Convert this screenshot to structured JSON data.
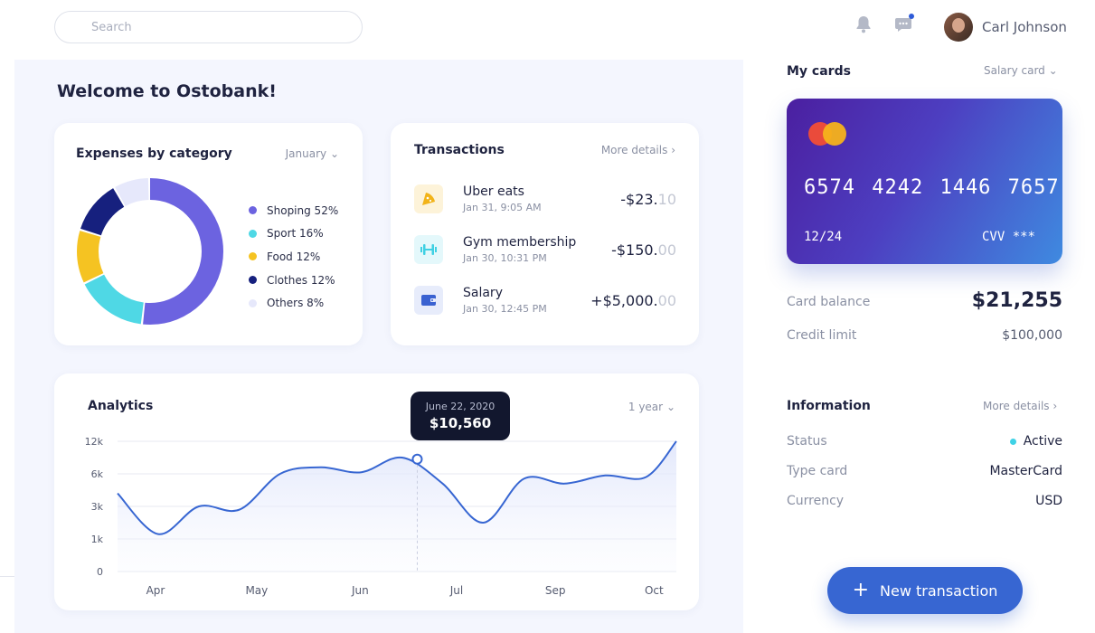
{
  "search": {
    "placeholder": "Search"
  },
  "header": {
    "user_name": "Carl Johnson",
    "icons": [
      "bell-icon",
      "chat-icon"
    ]
  },
  "welcome": "Welcome to Ostobank!",
  "expenses": {
    "title": "Expenses by category",
    "month": "January",
    "items": [
      {
        "label": "Shoping 52%",
        "percent": 52,
        "color": "#6c63e0"
      },
      {
        "label": "Sport 16%",
        "percent": 16,
        "color": "#4fd8e5"
      },
      {
        "label": "Food 12%",
        "percent": 12,
        "color": "#f5c322"
      },
      {
        "label": "Clothes 12%",
        "percent": 12,
        "color": "#16207e"
      },
      {
        "label": "Others 8%",
        "percent": 8,
        "color": "#e6e8fb"
      }
    ]
  },
  "transactions": {
    "title": "Transactions",
    "more": "More details",
    "items": [
      {
        "name": "Uber eats",
        "date": "Jan 31, 9:05 AM",
        "amount_main": "-$23.",
        "amount_cents": "10",
        "icon": "pizza-icon",
        "icon_bg": "#fdf3d9",
        "icon_color": "#f2b318"
      },
      {
        "name": "Gym membership",
        "date": "Jan 30, 10:31 PM",
        "amount_main": "-$150.",
        "amount_cents": "00",
        "icon": "dumbbell-icon",
        "icon_bg": "#e4f8fb",
        "icon_color": "#3fd0e3"
      },
      {
        "name": "Salary",
        "date": "Jan 30, 12:45 PM",
        "amount_main": "+$5,000.",
        "amount_cents": "00",
        "icon": "wallet-icon",
        "icon_bg": "#e7ecfb",
        "icon_color": "#3a62d1"
      }
    ]
  },
  "analytics": {
    "title": "Analytics",
    "range": "1 year",
    "tooltip_date": "June 22, 2020",
    "tooltip_value": "$10,560"
  },
  "chart_data": {
    "type": "line",
    "title": "Analytics",
    "x_ticks": [
      "Apr",
      "May",
      "Jun",
      "Jul",
      "Sep",
      "Oct"
    ],
    "y_ticks": [
      "12k",
      "6k",
      "3k",
      "1k",
      "0"
    ],
    "x": [
      0,
      0.4,
      0.8,
      1.2,
      1.6,
      2.0,
      2.4,
      2.8,
      3.2,
      3.6,
      4.0,
      4.4,
      4.8,
      5.2,
      5.5
    ],
    "y_position": [
      2.4,
      1.15,
      2.0,
      1.9,
      3.0,
      3.2,
      3.05,
      3.5,
      2.7,
      1.5,
      2.85,
      2.7,
      2.95,
      2.9,
      4.0
    ],
    "highlight": {
      "x": 2.95,
      "y": 3.45,
      "label": "$10,560"
    },
    "grid": true,
    "line_color": "#3766d2"
  },
  "cards": {
    "title": "My cards",
    "selector": "Salary card",
    "number": "6574 4242 1446 7657",
    "expiry": "12/24",
    "cvv": "CVV ***",
    "balance_label": "Card balance",
    "balance": "$21,255",
    "limit_label": "Credit limit",
    "limit": "$100,000"
  },
  "info": {
    "title": "Information",
    "more": "More details",
    "status_label": "Status",
    "status": "Active",
    "type_label": "Type card",
    "type": "MasterCard",
    "currency_label": "Currency",
    "currency": "USD"
  },
  "new_tx_label": "New transaction"
}
